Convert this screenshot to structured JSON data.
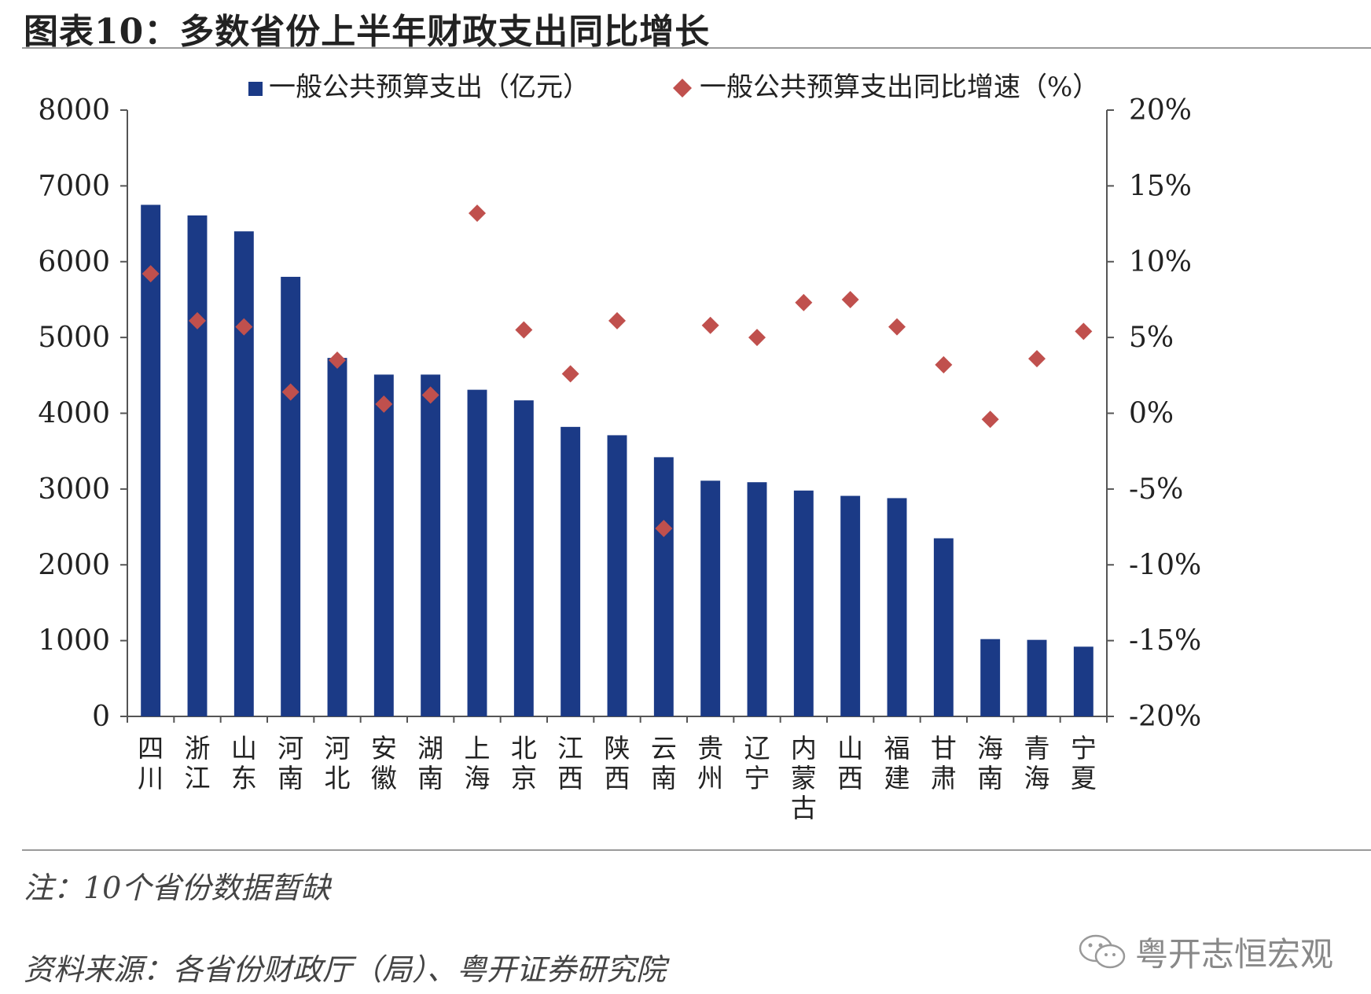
{
  "title": "图表10：多数省份上半年财政支出同比增长",
  "note": "注：10个省份数据暂缺",
  "source": "资料来源：各省份财政厅（局）、粤开证券研究院",
  "watermark": "粤开志恒宏观",
  "colors": {
    "bar": "#1b3a86",
    "marker": "#c0504d",
    "axis": "#555555"
  },
  "chart_data": {
    "type": "bar",
    "categories": [
      "四川",
      "浙江",
      "山东",
      "河南",
      "河北",
      "安徽",
      "湖南",
      "上海",
      "北京",
      "江西",
      "陕西",
      "云南",
      "贵州",
      "辽宁",
      "内蒙古",
      "山西",
      "福建",
      "甘肃",
      "海南",
      "青海",
      "宁夏"
    ],
    "series": [
      {
        "name": "一般公共预算支出（亿元）",
        "type": "bar",
        "axis": "left",
        "values": [
          6750,
          6610,
          6400,
          5800,
          4730,
          4510,
          4510,
          4310,
          4170,
          3820,
          3710,
          3420,
          3110,
          3090,
          2980,
          2910,
          2880,
          2350,
          1020,
          1010,
          920
        ]
      },
      {
        "name": "一般公共预算支出同比增速（%）",
        "type": "scatter",
        "axis": "right",
        "values": [
          9.2,
          6.1,
          5.7,
          1.4,
          3.5,
          0.6,
          1.2,
          13.2,
          5.5,
          2.6,
          6.1,
          -7.6,
          5.8,
          5.0,
          7.3,
          7.5,
          5.7,
          3.2,
          -0.4,
          3.6,
          5.4
        ]
      }
    ],
    "yleft": {
      "lim": [
        0,
        8000
      ],
      "ticks": [
        "0",
        "1000",
        "2000",
        "3000",
        "4000",
        "5000",
        "6000",
        "7000",
        "8000"
      ]
    },
    "yright": {
      "lim": [
        -20,
        20
      ],
      "ticks": [
        "-20%",
        "-15%",
        "-10%",
        "-5%",
        "0%",
        "5%",
        "10%",
        "15%",
        "20%"
      ]
    },
    "legend": {
      "position": "top"
    },
    "grid": false
  }
}
